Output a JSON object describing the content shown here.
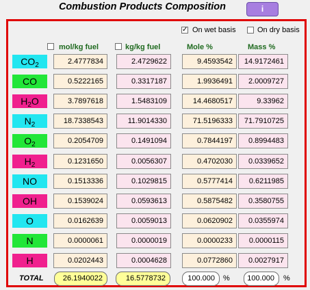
{
  "title": "Combustion Products Composition",
  "info_button": "i",
  "basis": {
    "wet_label": "On wet basis",
    "wet_checked": true,
    "dry_label": "On dry basis",
    "dry_checked": false
  },
  "columns": [
    {
      "label": "mol/kg fuel",
      "has_checkbox": true
    },
    {
      "label": "kg/kg fuel",
      "has_checkbox": true
    },
    {
      "label": "Mole %",
      "has_checkbox": false
    },
    {
      "label": "Mass %",
      "has_checkbox": false
    }
  ],
  "rows": [
    {
      "formula": "CO",
      "sub": "2",
      "color": "#22e6f0",
      "mol": "2.4777834",
      "kg": "2.4729622",
      "mole_pct": "9.4593542",
      "mass_pct": "14.9172461"
    },
    {
      "formula": "CO",
      "sub": "",
      "color": "#22e638",
      "mol": "0.5222165",
      "kg": "0.3317187",
      "mole_pct": "1.9936491",
      "mass_pct": "2.0009727"
    },
    {
      "formula": "H",
      "sub": "2",
      "tail": "O",
      "color": "#f0208e",
      "mol": "3.7897618",
      "kg": "1.5483109",
      "mole_pct": "14.4680517",
      "mass_pct": "9.33962"
    },
    {
      "formula": "N",
      "sub": "2",
      "color": "#22e6f0",
      "mol": "18.7338543",
      "kg": "11.9014330",
      "mole_pct": "71.5196333",
      "mass_pct": "71.7910725"
    },
    {
      "formula": "O",
      "sub": "2",
      "color": "#22e638",
      "mol": "0.2054709",
      "kg": "0.1491094",
      "mole_pct": "0.7844197",
      "mass_pct": "0.8994483"
    },
    {
      "formula": "H",
      "sub": "2",
      "color": "#f0208e",
      "mol": "0.1231650",
      "kg": "0.0056307",
      "mole_pct": "0.4702030",
      "mass_pct": "0.0339652"
    },
    {
      "formula": "NO",
      "sub": "",
      "color": "#22e6f0",
      "mol": "0.1513336",
      "kg": "0.1029815",
      "mole_pct": "0.5777414",
      "mass_pct": "0.6211985"
    },
    {
      "formula": "OH",
      "sub": "",
      "color": "#f0208e",
      "mol": "0.1539024",
      "kg": "0.0593613",
      "mole_pct": "0.5875482",
      "mass_pct": "0.3580755"
    },
    {
      "formula": "O",
      "sub": "",
      "color": "#22e6f0",
      "mol": "0.0162639",
      "kg": "0.0059013",
      "mole_pct": "0.0620902",
      "mass_pct": "0.0355974"
    },
    {
      "formula": "N",
      "sub": "",
      "color": "#22e638",
      "mol": "0.0000061",
      "kg": "0.0000019",
      "mole_pct": "0.0000233",
      "mass_pct": "0.0000115"
    },
    {
      "formula": "H",
      "sub": "",
      "color": "#f0208e",
      "mol": "0.0202443",
      "kg": "0.0004628",
      "mole_pct": "0.0772860",
      "mass_pct": "0.0027917"
    }
  ],
  "total": {
    "label": "TOTAL",
    "mol": "26.1940022",
    "kg": "16.5778732",
    "mole_pct": "100.000",
    "mass_pct": "100.000",
    "unit": "%"
  },
  "colors": {
    "panel_border": "#e00000",
    "info_button": "#a77ee0",
    "column_header": "#1f6a1f",
    "total_highlight": "#ffff99"
  }
}
